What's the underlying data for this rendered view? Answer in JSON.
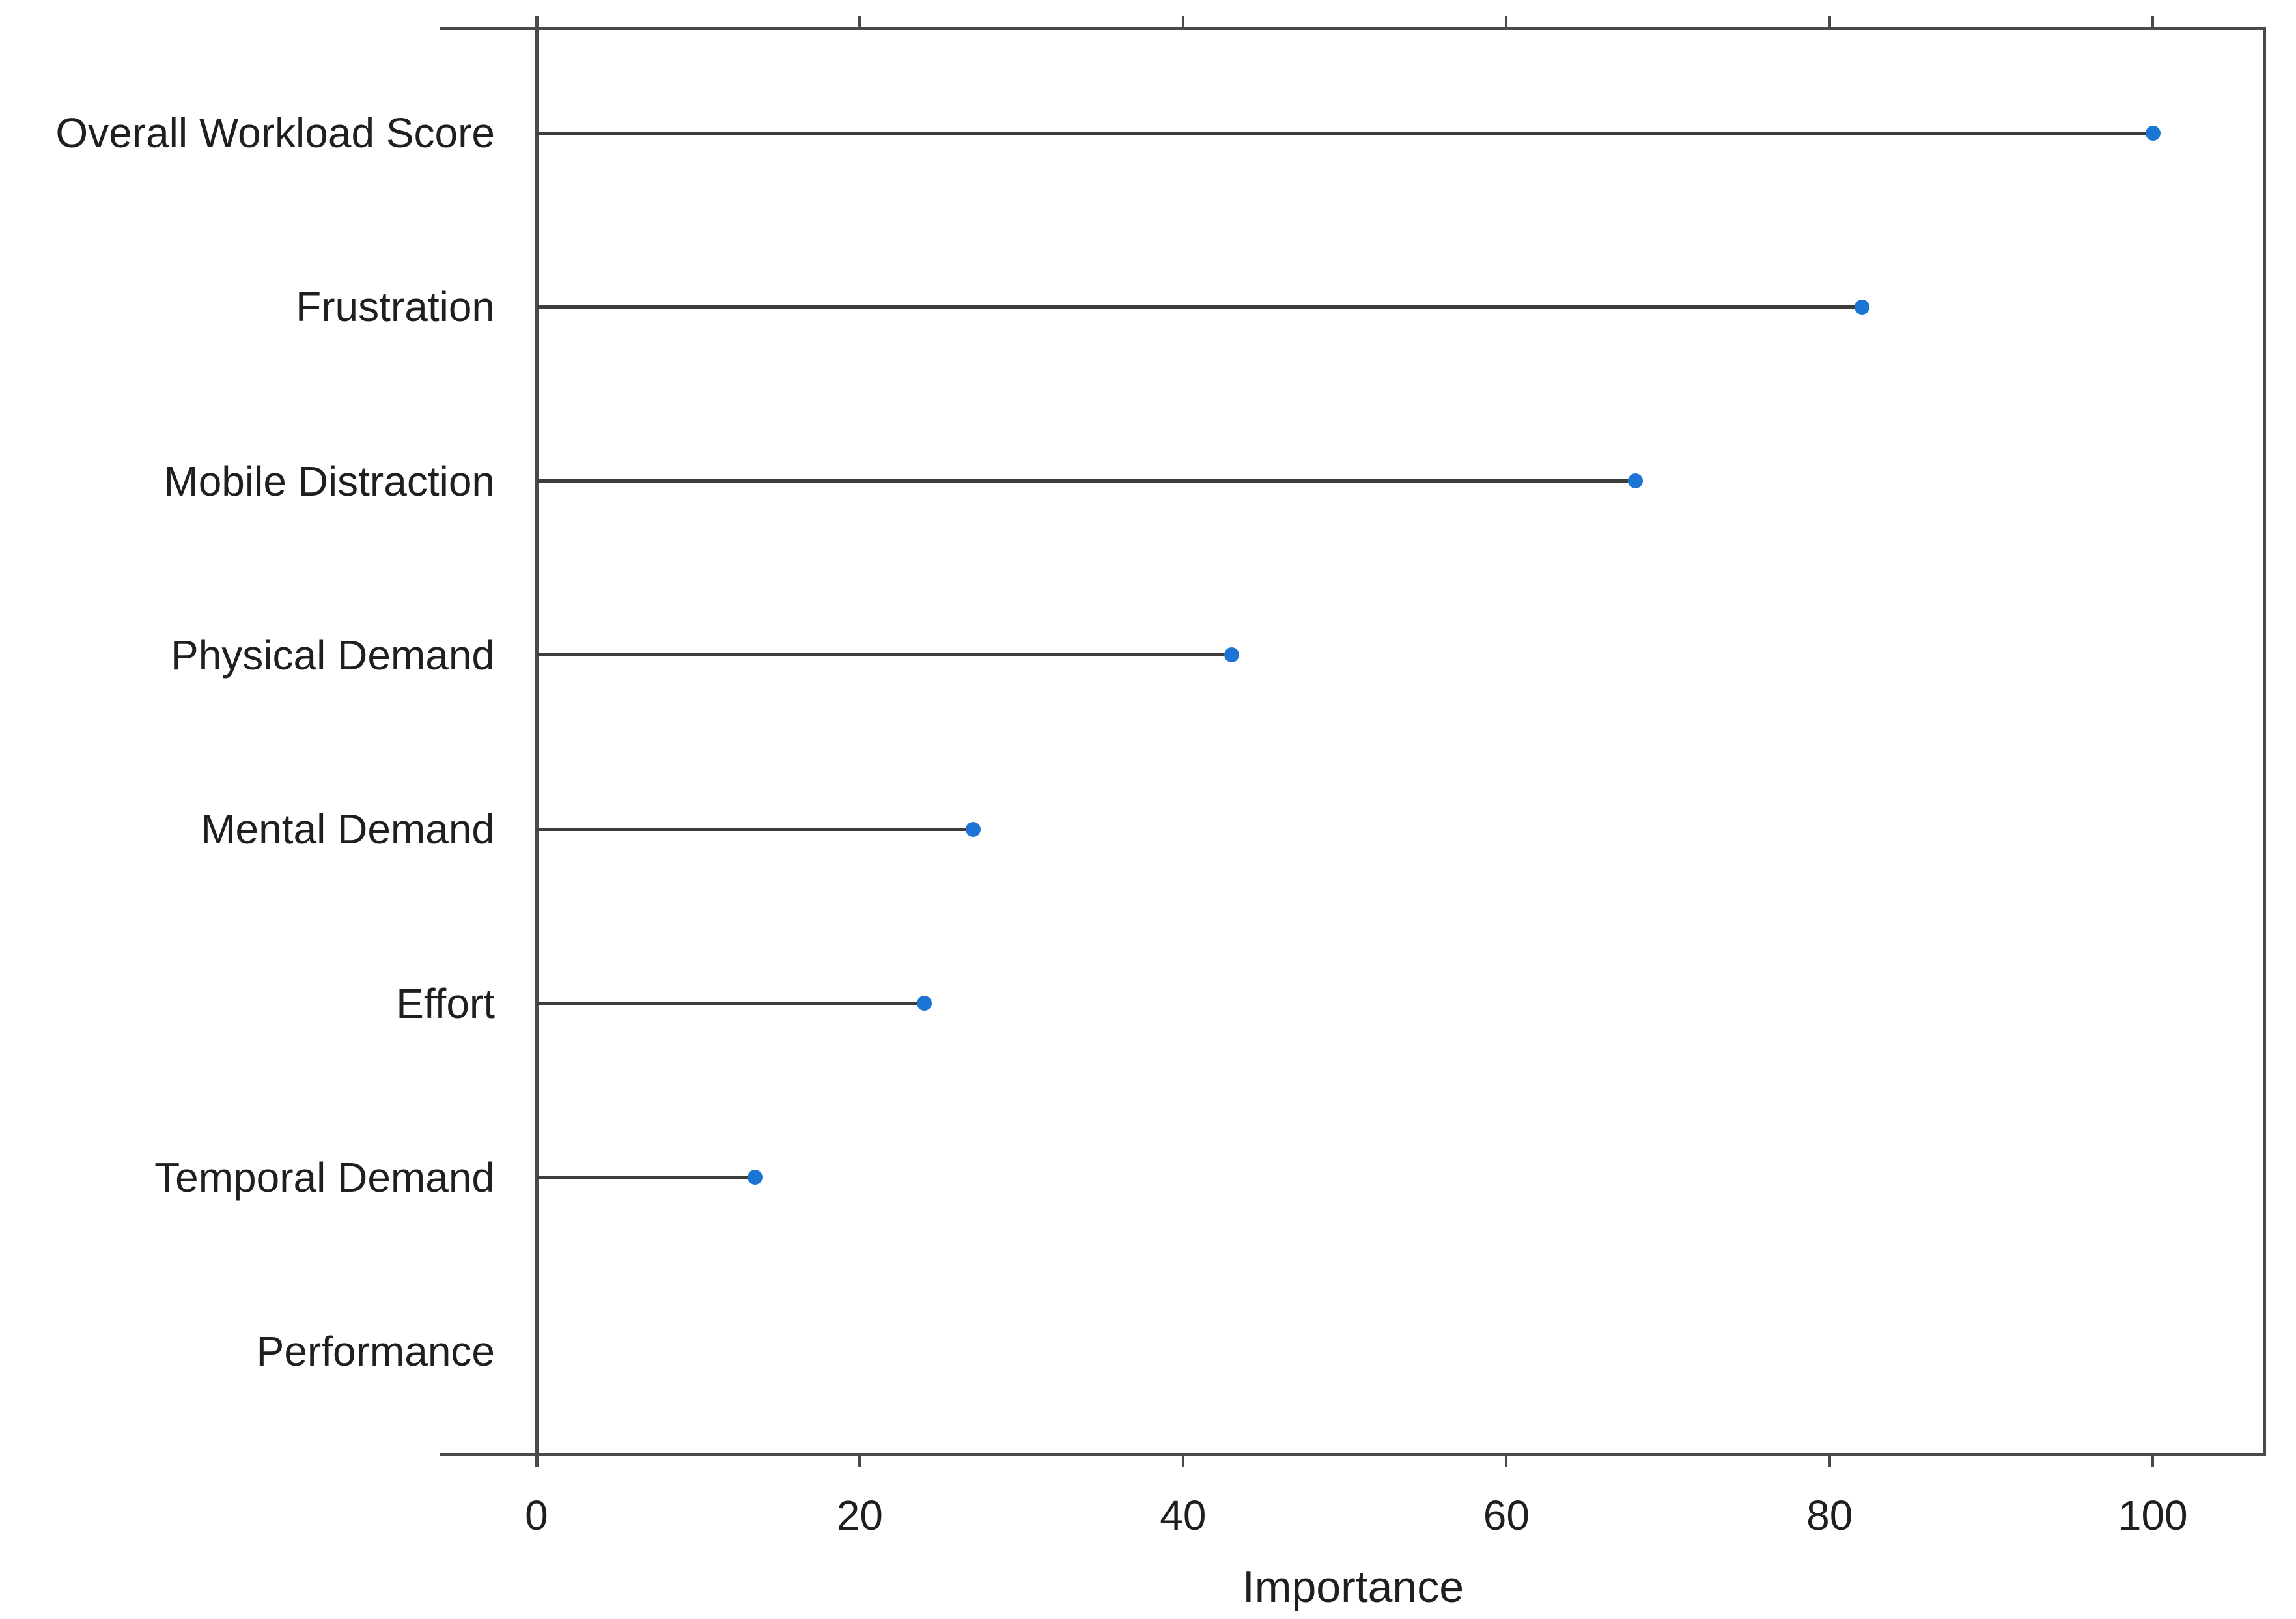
{
  "figure": {
    "background": "#ffffff"
  },
  "chart_data": {
    "type": "scatter",
    "style": "horizontal-lollipop",
    "orientation": "horizontal",
    "title": "",
    "xlabel": "Importance",
    "ylabel": "",
    "categories": [
      "Overall Workload Score",
      "Frustration",
      "Mobile Distraction",
      "Physical Demand",
      "Mental Demand",
      "Effort",
      "Temporal Demand",
      "Performance"
    ],
    "values": [
      100,
      82,
      68,
      43,
      27,
      24,
      13.5,
      0
    ],
    "x_ticks": [
      0,
      20,
      40,
      60,
      80,
      100
    ],
    "xlim": [
      -6,
      107
    ],
    "grid": "off",
    "legend": "none",
    "marker_color": "#1c75d4",
    "stem_color": "#3d3d3d",
    "axis_color": "#4a4a4a",
    "text_color": "#1f1f1f"
  }
}
